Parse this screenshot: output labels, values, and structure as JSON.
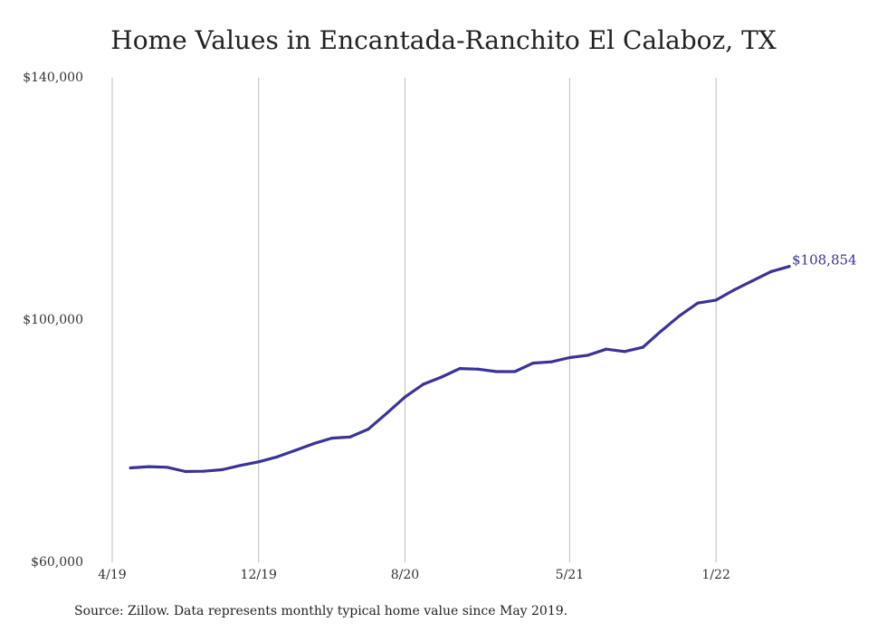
{
  "chart_data": {
    "type": "line",
    "title": "Home Values in Encantada-Ranchito El Calaboz, TX",
    "xlabel": "",
    "ylabel": "",
    "ylim": [
      60000,
      140000
    ],
    "y_ticks": [
      {
        "value": 60000,
        "label": "$60,000"
      },
      {
        "value": 100000,
        "label": "$100,000"
      },
      {
        "value": 140000,
        "label": "$140,000"
      }
    ],
    "x_ticks": [
      {
        "date": "2019-04",
        "label": "4/19"
      },
      {
        "date": "2019-12",
        "label": "12/19"
      },
      {
        "date": "2020-08",
        "label": "8/20"
      },
      {
        "date": "2021-05",
        "label": "5/21"
      },
      {
        "date": "2022-01",
        "label": "1/22"
      }
    ],
    "grid": "vertical",
    "end_label": "$108,854",
    "color": "#3a3298",
    "series": [
      {
        "x": [
          "2019-05",
          "2019-06",
          "2019-07",
          "2019-08",
          "2019-09",
          "2019-10",
          "2019-11",
          "2019-12",
          "2020-01",
          "2020-02",
          "2020-03",
          "2020-04",
          "2020-05",
          "2020-06",
          "2020-07",
          "2020-08",
          "2020-09",
          "2020-10",
          "2020-11",
          "2020-12",
          "2021-01",
          "2021-02",
          "2021-03",
          "2021-04",
          "2021-05",
          "2021-06",
          "2021-07",
          "2021-08",
          "2021-09",
          "2021-10",
          "2021-11",
          "2021-12",
          "2022-01",
          "2022-02",
          "2022-03",
          "2022-04",
          "2022-05"
        ],
        "values": [
          75600,
          75800,
          75700,
          75000,
          75050,
          75300,
          76000,
          76600,
          77400,
          78500,
          79600,
          80500,
          80700,
          82000,
          84600,
          87300,
          89400,
          90600,
          92000,
          91900,
          91500,
          91500,
          92900,
          93100,
          93800,
          94200,
          95200,
          94800,
          95500,
          98200,
          100700,
          102800,
          103300,
          105000,
          106500,
          108000,
          108854
        ]
      }
    ]
  },
  "source_note": "Source: Zillow. Data represents monthly typical home value since May 2019."
}
